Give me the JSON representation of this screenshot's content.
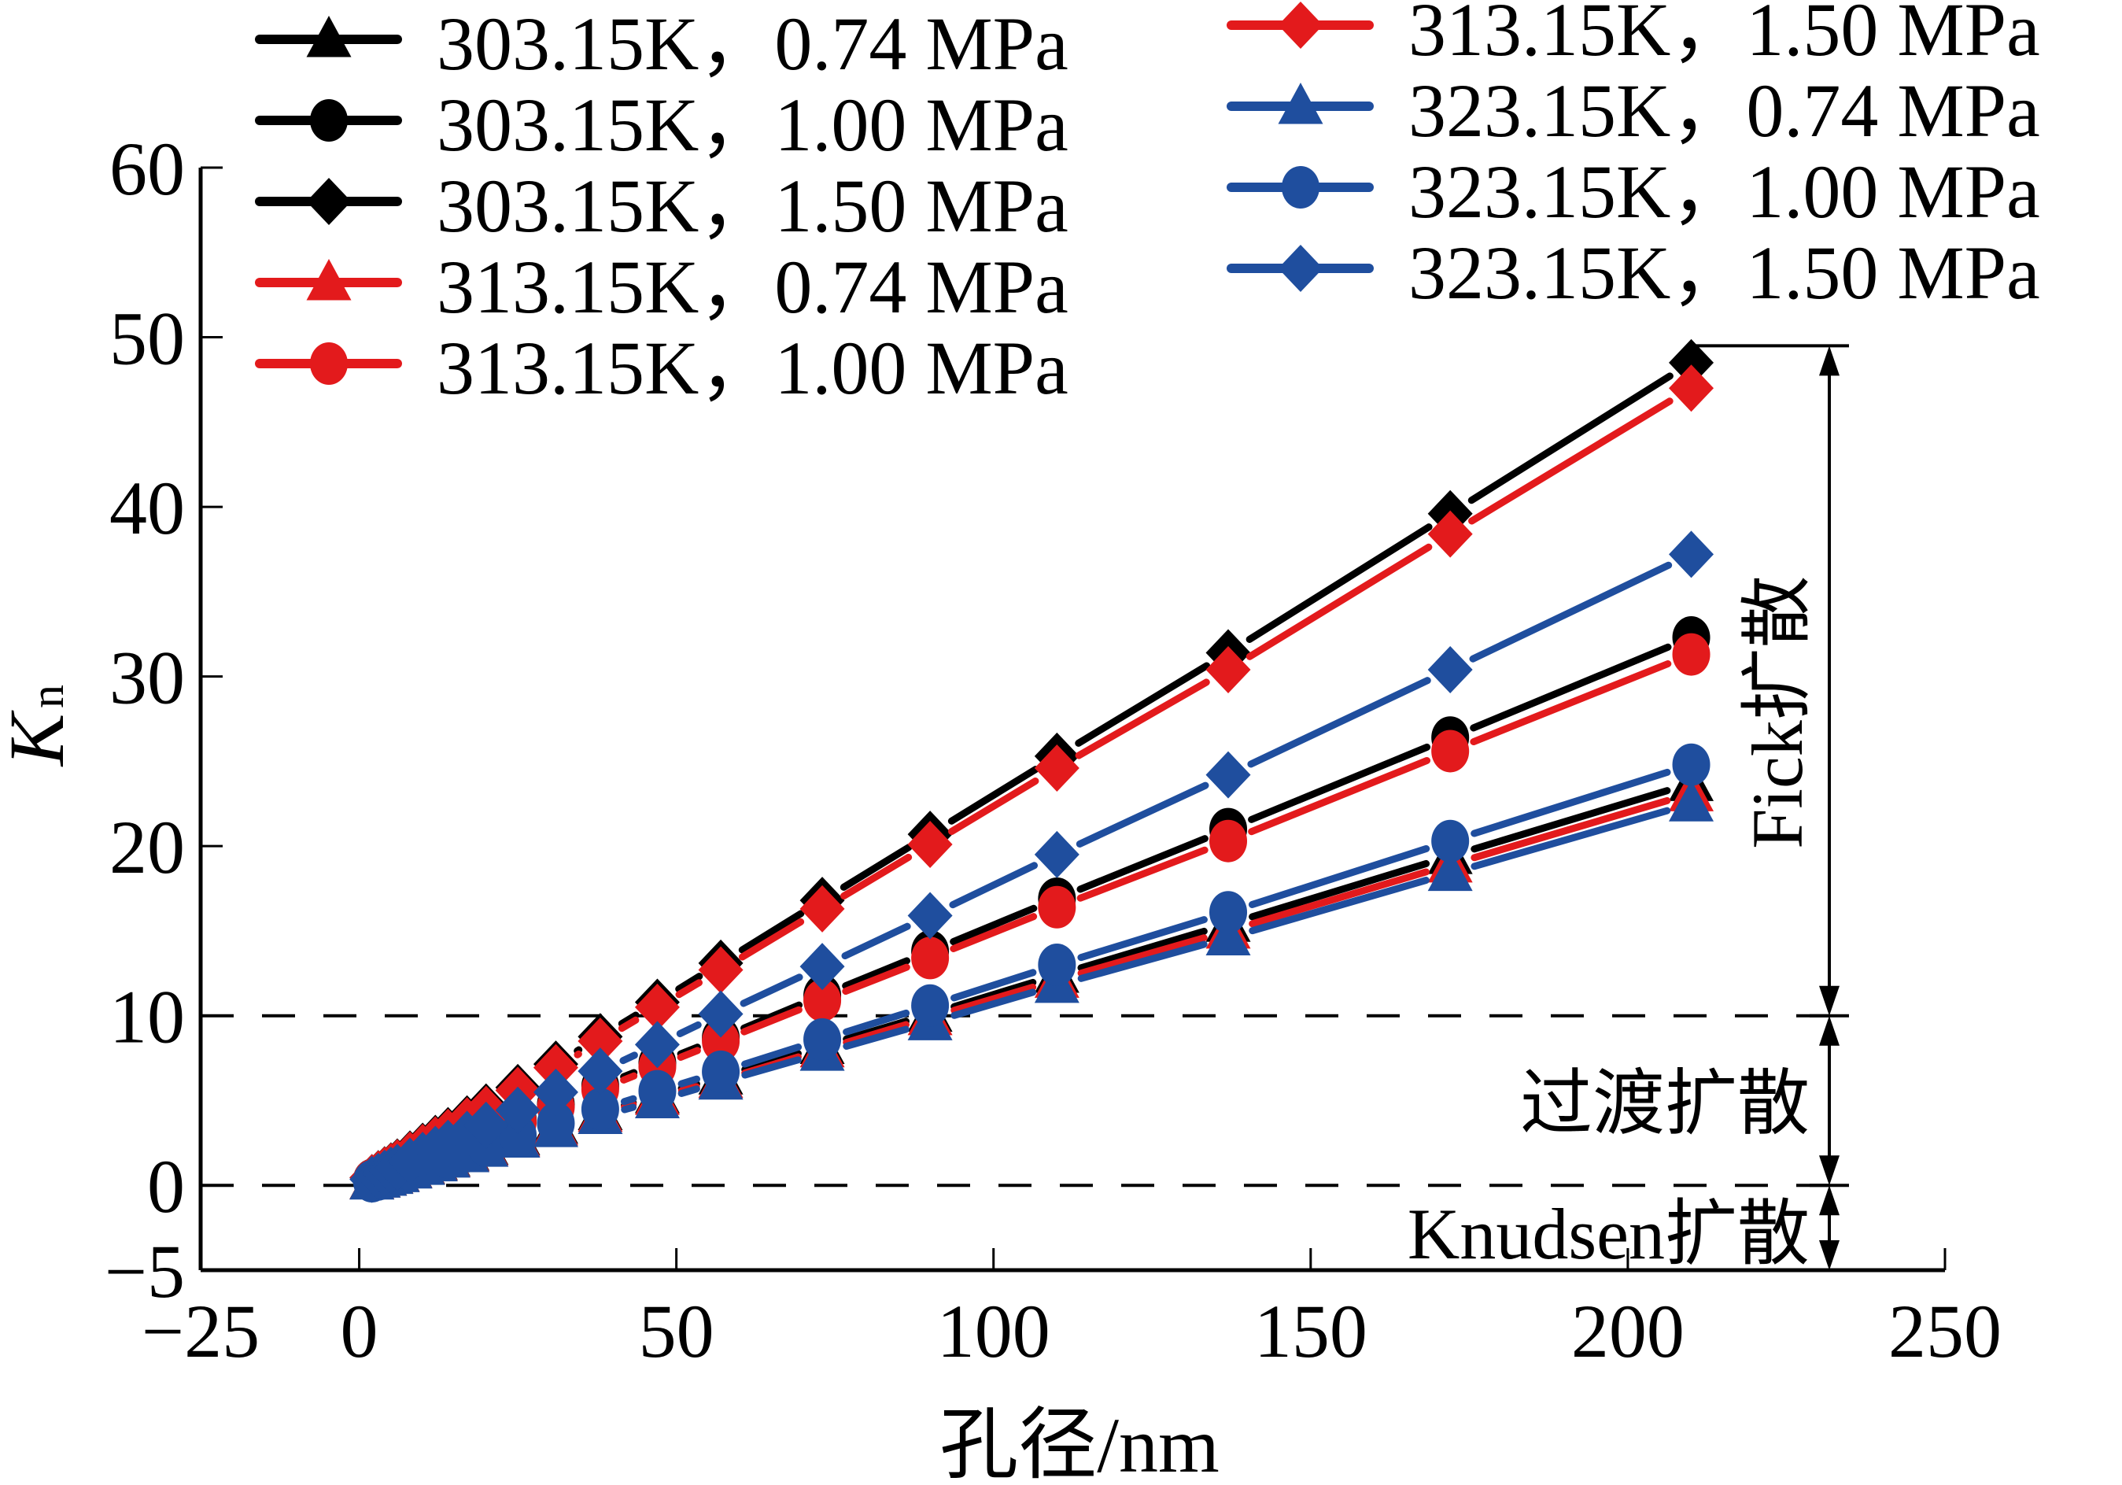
{
  "chart_data": {
    "type": "line",
    "title": "",
    "xlabel": "孔径/nm",
    "ylabel": "K",
    "ylabel_subscript": "n",
    "xlim": [
      -25,
      250
    ],
    "ylim": [
      -5,
      60
    ],
    "xticks": [
      -25,
      0,
      50,
      100,
      150,
      200,
      250
    ],
    "xtick_labels": [
      "−25",
      "0",
      "50",
      "100",
      "150",
      "200",
      "250"
    ],
    "yticks": [
      -5,
      0,
      10,
      20,
      30,
      40,
      50,
      60
    ],
    "ytick_labels": [
      "−5",
      "0",
      "10",
      "20",
      "30",
      "40",
      "50",
      "60"
    ],
    "grid": false,
    "legend_position": "top",
    "x": [
      2,
      3,
      4,
      5,
      6,
      8,
      10,
      12,
      14,
      17,
      20,
      25,
      31,
      38,
      47,
      57,
      73,
      90,
      110,
      137,
      172,
      210
    ],
    "series": [
      {
        "name": "303.15K，0.74 MPa",
        "color": "#000000",
        "marker": "triangle",
        "values": [
          0.23,
          0.34,
          0.45,
          0.57,
          0.68,
          0.9,
          1.13,
          1.36,
          1.58,
          1.92,
          2.26,
          2.83,
          3.5,
          4.3,
          5.3,
          6.4,
          8.2,
          10.1,
          12.4,
          15.4,
          19.4,
          23.7
        ]
      },
      {
        "name": "303.15K，1.00 MPa",
        "color": "#000000",
        "marker": "circle",
        "values": [
          0.31,
          0.46,
          0.62,
          0.77,
          0.92,
          1.23,
          1.54,
          1.85,
          2.15,
          2.62,
          3.08,
          3.85,
          4.77,
          5.85,
          7.2,
          8.7,
          11.2,
          13.8,
          16.9,
          21.0,
          26.4,
          32.3
        ]
      },
      {
        "name": "303.15K，1.50 MPa",
        "color": "#000000",
        "marker": "diamond",
        "values": [
          0.46,
          0.69,
          0.92,
          1.15,
          1.38,
          1.85,
          2.31,
          2.77,
          3.23,
          3.92,
          4.62,
          5.77,
          7.15,
          8.77,
          10.8,
          13.1,
          16.8,
          20.7,
          25.3,
          31.4,
          39.6,
          48.5
        ]
      },
      {
        "name": "313.15K，0.74 MPa",
        "color": "#e31a1c",
        "marker": "triangle",
        "values": [
          0.22,
          0.33,
          0.44,
          0.55,
          0.66,
          0.88,
          1.1,
          1.32,
          1.54,
          1.87,
          2.2,
          2.75,
          3.4,
          4.2,
          5.2,
          6.2,
          8.0,
          9.9,
          12.1,
          15.0,
          18.9,
          23.1
        ]
      },
      {
        "name": "313.15K，1.00 MPa",
        "color": "#e31a1c",
        "marker": "circle",
        "values": [
          0.3,
          0.45,
          0.6,
          0.75,
          0.9,
          1.19,
          1.49,
          1.79,
          2.09,
          2.53,
          2.98,
          3.73,
          4.62,
          5.66,
          7.0,
          8.5,
          10.9,
          13.4,
          16.4,
          20.3,
          25.6,
          31.3
        ]
      },
      {
        "name": "313.15K，1.50 MPa",
        "color": "#e31a1c",
        "marker": "diamond",
        "values": [
          0.45,
          0.67,
          0.9,
          1.12,
          1.34,
          1.79,
          2.24,
          2.69,
          3.13,
          3.81,
          4.48,
          5.6,
          6.94,
          8.5,
          10.5,
          12.7,
          16.3,
          20.1,
          24.6,
          30.4,
          38.4,
          47.0
        ]
      },
      {
        "name": "323.15K，0.74 MPa",
        "color": "#1f4e9e",
        "marker": "triangle",
        "values": [
          0.21,
          0.32,
          0.43,
          0.54,
          0.64,
          0.86,
          1.07,
          1.28,
          1.5,
          1.82,
          2.14,
          2.68,
          3.3,
          4.07,
          5.0,
          6.1,
          7.8,
          9.6,
          11.8,
          14.6,
          18.4,
          22.5
        ]
      },
      {
        "name": "323.15K，1.00 MPa",
        "color": "#1f4e9e",
        "marker": "circle",
        "values": [
          0.24,
          0.35,
          0.47,
          0.59,
          0.71,
          0.94,
          1.18,
          1.42,
          1.65,
          2.01,
          2.36,
          2.95,
          3.66,
          4.49,
          5.55,
          6.7,
          8.6,
          10.6,
          13.0,
          16.1,
          20.3,
          24.8
        ]
      },
      {
        "name": "323.15K，1.50 MPa",
        "color": "#1f4e9e",
        "marker": "diamond",
        "values": [
          0.35,
          0.53,
          0.71,
          0.89,
          1.06,
          1.42,
          1.77,
          2.12,
          2.48,
          3.01,
          3.54,
          4.43,
          5.49,
          6.73,
          8.3,
          10.1,
          12.9,
          15.9,
          19.5,
          24.2,
          30.4,
          37.2
        ]
      }
    ],
    "reference_lines": [
      {
        "y": 10,
        "style": "dashed"
      },
      {
        "y": 0,
        "style": "dashed"
      }
    ],
    "annotations": [
      {
        "text": "Fick扩散",
        "range": [
          10,
          49.5
        ],
        "orientation": "vertical"
      },
      {
        "text": "过渡扩散",
        "range": [
          0,
          10
        ],
        "orientation": "horizontal"
      },
      {
        "text": "Knudsen扩散",
        "range": [
          -5,
          0
        ],
        "orientation": "horizontal"
      }
    ]
  }
}
